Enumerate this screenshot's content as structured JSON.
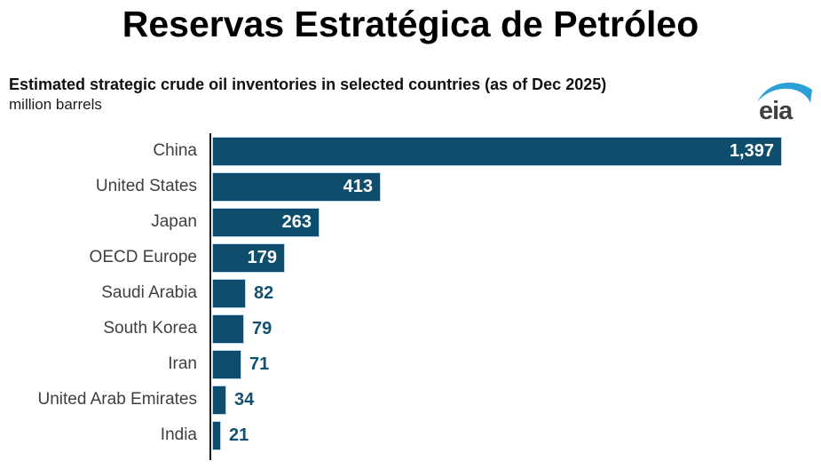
{
  "header": {
    "title": "Reservas Estratégica de Petróleo",
    "subtitle": "Estimated strategic crude oil inventories in selected countries (as of Dec 2025)",
    "units": "million barrels",
    "logo_text": "eia"
  },
  "colors": {
    "bar": "#0e4d6c",
    "bar_border": "#b9d4e4",
    "value_inside": "#ffffff",
    "value_outside": "#12516f",
    "category_label": "#3f3f3f",
    "axis": "#1a1a1a",
    "logo_swoosh": "#2b9fd8",
    "logo_text": "#414042"
  },
  "chart_data": {
    "type": "bar",
    "orientation": "horizontal",
    "title": "Estimated strategic crude oil inventories in selected countries (as of Dec 2025)",
    "xlabel": "",
    "ylabel": "million barrels",
    "categories": [
      "China",
      "United States",
      "Japan",
      "OECD Europe",
      "Saudi Arabia",
      "South Korea",
      "Iran",
      "United Arab Emirates",
      "India"
    ],
    "values": [
      1397,
      413,
      263,
      179,
      82,
      79,
      71,
      34,
      21
    ],
    "value_labels": [
      "1,397",
      "413",
      "263",
      "179",
      "82",
      "79",
      "71",
      "34",
      "21"
    ],
    "xlim": [
      0,
      1400
    ],
    "grid": false,
    "legend": false
  }
}
